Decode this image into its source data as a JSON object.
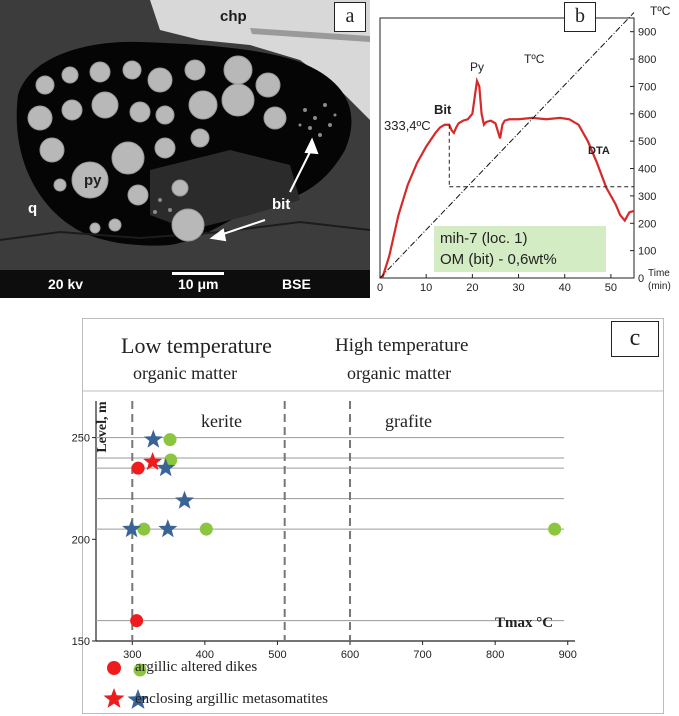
{
  "panel_a": {
    "letter": "a",
    "labels": {
      "chp": "chp",
      "py": "py",
      "q": "q",
      "bit": "bit"
    },
    "scale_bar": {
      "voltage": "20 kv",
      "scale": "10 μm",
      "mode": "BSE"
    }
  },
  "panel_b": {
    "letter": "b",
    "labels": {
      "tc_top": "TºC",
      "py": "Py",
      "tc_line": "TºC",
      "bit": "Bit",
      "temp": "333,4ºC",
      "dta": "DTA",
      "time": "Time",
      "min": "(min)"
    },
    "legend": {
      "line1": "mih-7 (loc. 1)",
      "line2": "OM (bit) - 0,6wt%"
    },
    "x_ticks": [
      "0",
      "10",
      "20",
      "30",
      "40",
      "50"
    ],
    "y_ticks": [
      "0",
      "100",
      "200",
      "300",
      "400",
      "500",
      "600",
      "700",
      "800",
      "900"
    ],
    "chart_data": {
      "type": "line",
      "xlabel": "Time (min)",
      "ylabel": "TºC",
      "xlim": [
        0,
        55
      ],
      "ylim": [
        0,
        950
      ],
      "series": [
        {
          "name": "DTA",
          "color": "#d62a2a",
          "x": [
            0.5,
            2,
            4,
            6,
            8,
            10,
            12,
            13,
            14,
            15,
            15.5,
            16,
            16.5,
            17,
            18,
            19,
            20,
            20.5,
            21,
            21.5,
            22,
            22.5,
            23,
            24,
            25,
            26,
            26.5,
            27,
            28,
            30,
            33,
            36,
            39,
            41,
            43,
            45,
            47,
            49,
            51,
            52,
            53,
            54,
            55
          ],
          "y": [
            0,
            80,
            230,
            340,
            420,
            480,
            530,
            550,
            560,
            560,
            540,
            530,
            550,
            565,
            575,
            580,
            600,
            660,
            720,
            700,
            600,
            560,
            570,
            575,
            565,
            510,
            560,
            575,
            580,
            580,
            585,
            580,
            585,
            580,
            560,
            500,
            420,
            330,
            270,
            230,
            210,
            240,
            245
          ]
        },
        {
          "name": "TºC",
          "color": "#111111",
          "dash": "dashdot",
          "x": [
            0,
            55
          ],
          "y": [
            0,
            970
          ]
        }
      ],
      "annotations": [
        {
          "text": "333,4ºC",
          "x": 15,
          "y": 333.4
        }
      ]
    }
  },
  "panel_c": {
    "letter": "c",
    "header": {
      "low_line1": "Low temperature",
      "low_line2": "organic matter",
      "high_line1": "High temperature",
      "high_line2": "organic matter"
    },
    "region_labels": {
      "kerite": "kerite",
      "grafite": "grafite"
    },
    "axis_labels": {
      "y": "Level, m",
      "x": "Tmax °C"
    },
    "y_ticks": [
      "150",
      "200",
      "250"
    ],
    "x_ticks": [
      "300",
      "400",
      "500",
      "600",
      "700",
      "800",
      "900"
    ],
    "legend": {
      "dikes": "argillic     altered     dikes",
      "metasomatites": "enclosing argillic metasomatites"
    },
    "colors": {
      "red": "#ee1c1c",
      "green": "#8cc63f",
      "blue": "#3b6496"
    },
    "chart_data": {
      "type": "scatter",
      "xlabel": "Tmax °C",
      "ylabel": "Level, m",
      "xlim": [
        250,
        910
      ],
      "ylim": [
        150,
        268
      ],
      "reference_lines_x": [
        300,
        510,
        600
      ],
      "reference_lines_y": [
        160,
        205,
        220,
        235,
        240,
        250
      ],
      "series": [
        {
          "name": "argillic altered dikes (red)",
          "marker": "circle",
          "color": "#ee1c1c",
          "points": [
            [
              308,
              235
            ],
            [
              306,
              160
            ]
          ]
        },
        {
          "name": "argillic altered dikes (green)",
          "marker": "circle",
          "color": "#8cc63f",
          "points": [
            [
              352,
              249
            ],
            [
              353,
              239
            ],
            [
              316,
              205
            ],
            [
              402,
              205
            ],
            [
              882,
              205
            ]
          ]
        },
        {
          "name": "enclosing argillic metasomatites (red)",
          "marker": "star",
          "color": "#ee1c1c",
          "points": [
            [
              328,
              238
            ]
          ]
        },
        {
          "name": "enclosing argillic metasomatites (blue)",
          "marker": "star",
          "color": "#3b6496",
          "points": [
            [
              329,
              249
            ],
            [
              346,
              235
            ],
            [
              372,
              219
            ],
            [
              299,
              205
            ],
            [
              349,
              205
            ]
          ]
        }
      ]
    }
  }
}
